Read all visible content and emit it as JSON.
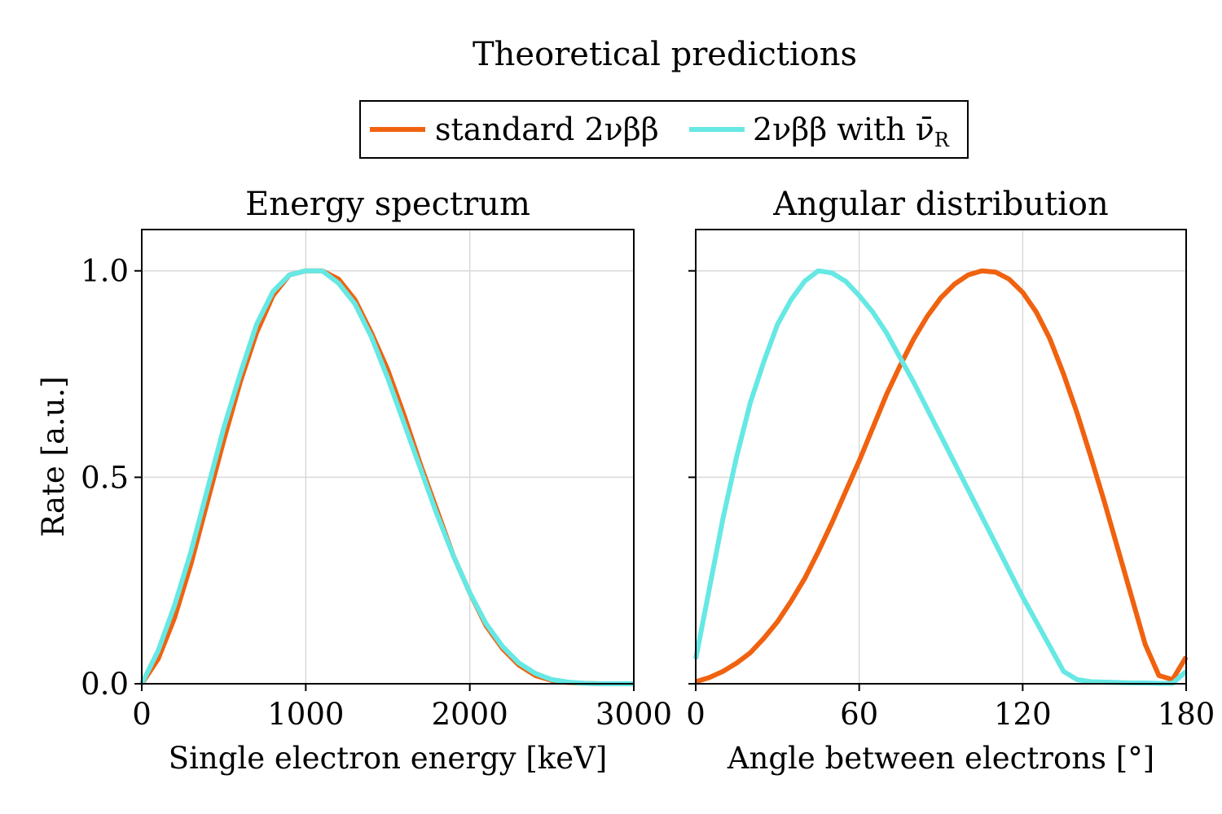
{
  "figure": {
    "title": "Theoretical predictions",
    "legend": {
      "placement": "top-center",
      "entries": [
        {
          "label": "standard 2νββ",
          "color": "#f0620f"
        },
        {
          "label": "2νββ with ν̄",
          "subscript": "R",
          "color": "#66e8e4"
        }
      ]
    }
  },
  "chart_data": [
    {
      "type": "line",
      "title": "Energy spectrum",
      "xlabel": "Single electron energy [keV]",
      "ylabel": "Rate [a.u.]",
      "xlim": [
        0,
        3000
      ],
      "ylim": [
        0,
        1.1
      ],
      "xticks": [
        0,
        1000,
        2000,
        3000
      ],
      "yticks": [
        0.0,
        0.5,
        1.0
      ],
      "xtick_labels": [
        "0",
        "1000",
        "2000",
        "3000"
      ],
      "ytick_labels": [
        "0.0",
        "0.5",
        "1.0"
      ],
      "grid": true,
      "x": [
        0,
        100,
        200,
        300,
        400,
        500,
        600,
        700,
        800,
        900,
        1000,
        1100,
        1200,
        1300,
        1400,
        1500,
        1600,
        1700,
        1800,
        1900,
        2000,
        2100,
        2200,
        2300,
        2400,
        2500,
        2600,
        2700,
        2800,
        2900,
        3000
      ],
      "series": [
        {
          "name": "standard 2νββ",
          "color": "#f0620f",
          "values": [
            0.0,
            0.06,
            0.16,
            0.29,
            0.44,
            0.59,
            0.73,
            0.85,
            0.94,
            0.99,
            1.0,
            1.0,
            0.98,
            0.93,
            0.85,
            0.76,
            0.65,
            0.53,
            0.42,
            0.31,
            0.22,
            0.14,
            0.085,
            0.045,
            0.02,
            0.008,
            0.003,
            0.001,
            0.0,
            0.0,
            0.0
          ]
        },
        {
          "name": "2νββ with ν̄R",
          "color": "#66e8e4",
          "values": [
            0.0,
            0.08,
            0.19,
            0.32,
            0.47,
            0.62,
            0.75,
            0.87,
            0.95,
            0.99,
            1.0,
            1.0,
            0.97,
            0.92,
            0.84,
            0.74,
            0.63,
            0.52,
            0.41,
            0.31,
            0.22,
            0.145,
            0.09,
            0.05,
            0.025,
            0.01,
            0.004,
            0.001,
            0.0,
            0.0,
            0.0
          ]
        }
      ]
    },
    {
      "type": "line",
      "title": "Angular distribution",
      "xlabel": "Angle between electrons [°]",
      "ylabel": "",
      "xlim": [
        0,
        180
      ],
      "ylim": [
        0,
        1.1
      ],
      "xticks": [
        0,
        60,
        120,
        180
      ],
      "yticks": [
        0.0,
        0.5,
        1.0
      ],
      "xtick_labels": [
        "0",
        "60",
        "120",
        "180"
      ],
      "ytick_labels": [],
      "grid": true,
      "x": [
        0,
        5,
        10,
        15,
        20,
        25,
        30,
        35,
        40,
        45,
        50,
        55,
        60,
        65,
        70,
        75,
        80,
        85,
        90,
        95,
        100,
        105,
        110,
        115,
        120,
        125,
        130,
        135,
        140,
        145,
        150,
        155,
        160,
        165,
        170,
        175,
        180
      ],
      "series": [
        {
          "name": "standard 2νββ",
          "color": "#f0620f",
          "values": [
            0.005,
            0.015,
            0.03,
            0.05,
            0.075,
            0.11,
            0.15,
            0.2,
            0.255,
            0.32,
            0.39,
            0.465,
            0.54,
            0.62,
            0.7,
            0.77,
            0.835,
            0.89,
            0.935,
            0.968,
            0.99,
            1.0,
            0.997,
            0.98,
            0.948,
            0.9,
            0.835,
            0.75,
            0.655,
            0.55,
            0.44,
            0.325,
            0.21,
            0.095,
            0.02,
            0.01,
            0.065
          ]
        },
        {
          "name": "2νββ with ν̄R",
          "color": "#66e8e4",
          "values": [
            0.06,
            0.23,
            0.4,
            0.55,
            0.68,
            0.78,
            0.87,
            0.93,
            0.975,
            1.0,
            0.995,
            0.975,
            0.94,
            0.9,
            0.85,
            0.79,
            0.73,
            0.665,
            0.6,
            0.535,
            0.47,
            0.405,
            0.34,
            0.275,
            0.21,
            0.15,
            0.09,
            0.03,
            0.01,
            0.005,
            0.004,
            0.003,
            0.002,
            0.002,
            0.001,
            0.001,
            0.03
          ]
        }
      ]
    }
  ]
}
